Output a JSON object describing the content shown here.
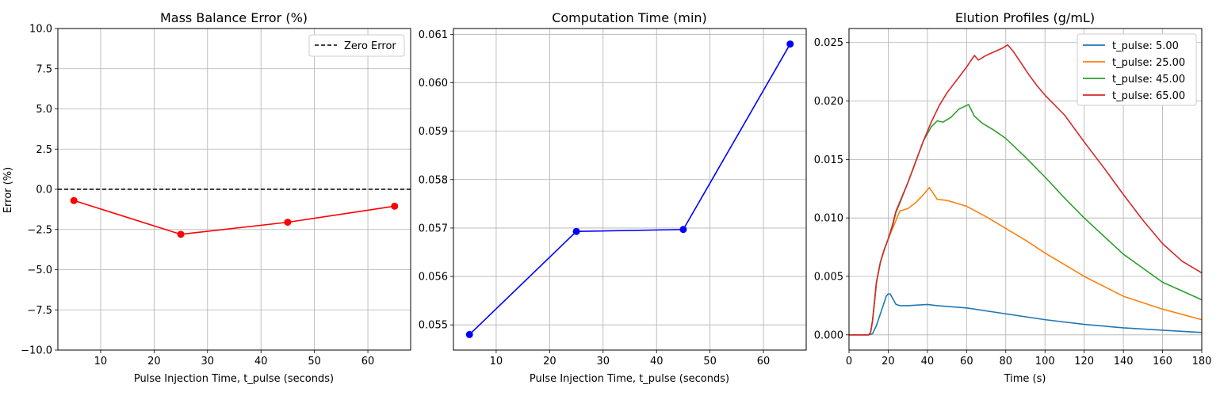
{
  "chart_data": [
    {
      "type": "line",
      "title": "Mass Balance Error (%)",
      "xlabel": "Pulse Injection Time, t_pulse (seconds)",
      "ylabel": "Error (%)",
      "xlim": [
        2,
        68
      ],
      "ylim": [
        -10,
        10
      ],
      "xticks": [
        10,
        20,
        30,
        40,
        50,
        60
      ],
      "yticks": [
        -10.0,
        -7.5,
        -5.0,
        -2.5,
        0.0,
        2.5,
        5.0,
        7.5,
        10.0
      ],
      "ytick_labels": [
        "−10.0",
        "−7.5",
        "−5.0",
        "−2.5",
        "0.0",
        "2.5",
        "5.0",
        "7.5",
        "10.0"
      ],
      "grid": true,
      "legend": "upper right",
      "series": [
        {
          "x": [
            5,
            25,
            45,
            65
          ],
          "y": [
            -0.7,
            -2.8,
            -2.05,
            -1.05
          ],
          "color": "#ff0000",
          "marker": "circle"
        }
      ],
      "hlines": [
        {
          "name": "Zero Error",
          "y": 0,
          "color": "#000000",
          "style": "dashed"
        }
      ]
    },
    {
      "type": "line",
      "title": "Computation Time (min)",
      "xlabel": "Pulse Injection Time, t_pulse (seconds)",
      "ylabel": "",
      "xlim": [
        2,
        68
      ],
      "ylim": [
        0.05448,
        0.06112
      ],
      "xticks": [
        10,
        20,
        30,
        40,
        50,
        60
      ],
      "yticks": [
        0.055,
        0.056,
        0.057,
        0.058,
        0.059,
        0.06,
        0.061
      ],
      "ytick_labels": [
        "0.055",
        "0.056",
        "0.057",
        "0.058",
        "0.059",
        "0.060",
        "0.061"
      ],
      "grid": true,
      "series": [
        {
          "x": [
            5,
            25,
            45,
            65
          ],
          "y": [
            0.0548,
            0.05693,
            0.05697,
            0.0608
          ],
          "color": "#0000ff",
          "marker": "circle"
        }
      ]
    },
    {
      "type": "line",
      "title": "Elution Profiles (g/mL)",
      "xlabel": "Time (s)",
      "ylabel": "",
      "xlim": [
        0,
        180
      ],
      "ylim": [
        -0.0013,
        0.0262
      ],
      "xticks": [
        0,
        20,
        40,
        60,
        80,
        100,
        120,
        140,
        160,
        180
      ],
      "yticks": [
        0.0,
        0.005,
        0.01,
        0.015,
        0.02,
        0.025
      ],
      "ytick_labels": [
        "0.000",
        "0.005",
        "0.010",
        "0.015",
        "0.020",
        "0.025"
      ],
      "grid": true,
      "legend": "upper right",
      "series": [
        {
          "name": "t_pulse: 5.00",
          "color": "#1f77b4",
          "x": [
            0,
            10,
            12,
            14,
            16,
            18,
            19,
            20,
            21,
            22,
            24,
            26,
            30,
            40,
            45,
            60,
            80,
            100,
            120,
            140,
            160,
            180
          ],
          "y": [
            0,
            0,
            0.0001,
            0.0008,
            0.0018,
            0.0028,
            0.0033,
            0.0035,
            0.0035,
            0.0032,
            0.0026,
            0.0025,
            0.0025,
            0.0026,
            0.0025,
            0.0023,
            0.0018,
            0.0013,
            0.0009,
            0.0006,
            0.0004,
            0.0002
          ]
        },
        {
          "name": "t_pulse: 25.00",
          "color": "#ff7f0e",
          "x": [
            0,
            10,
            11,
            12,
            13,
            14,
            16,
            18,
            20,
            22,
            24,
            26,
            28,
            30,
            34,
            38,
            41,
            43,
            45,
            50,
            60,
            70,
            80,
            90,
            100,
            110,
            120,
            140,
            160,
            180
          ],
          "y": [
            0,
            0,
            0.0002,
            0.0012,
            0.0028,
            0.0045,
            0.0062,
            0.0073,
            0.0082,
            0.009,
            0.0098,
            0.0106,
            0.0107,
            0.0108,
            0.0113,
            0.012,
            0.0126,
            0.0121,
            0.0116,
            0.0115,
            0.011,
            0.0101,
            0.0091,
            0.0081,
            0.007,
            0.006,
            0.005,
            0.0033,
            0.0022,
            0.0013
          ]
        },
        {
          "name": "t_pulse: 45.00",
          "color": "#2ca02c",
          "x": [
            0,
            10,
            11,
            12,
            13,
            14,
            16,
            18,
            20,
            22,
            24,
            26,
            30,
            34,
            38,
            42,
            45,
            48,
            52,
            56,
            61,
            64,
            68,
            74,
            80,
            90,
            100,
            110,
            120,
            140,
            160,
            180
          ],
          "y": [
            0,
            0,
            0.0002,
            0.0012,
            0.0028,
            0.0045,
            0.0062,
            0.0073,
            0.0082,
            0.0092,
            0.0105,
            0.0113,
            0.013,
            0.0148,
            0.0166,
            0.0178,
            0.0183,
            0.0182,
            0.0186,
            0.0193,
            0.0197,
            0.0187,
            0.0181,
            0.0175,
            0.0168,
            0.0152,
            0.0135,
            0.0117,
            0.01,
            0.0069,
            0.0045,
            0.003
          ]
        },
        {
          "name": "t_pulse: 65.00",
          "color": "#d62728",
          "x": [
            0,
            10,
            11,
            12,
            13,
            14,
            16,
            18,
            20,
            22,
            24,
            26,
            30,
            34,
            38,
            42,
            46,
            50,
            55,
            60,
            64,
            66,
            70,
            74,
            78,
            81,
            84,
            88,
            92,
            96,
            100,
            110,
            120,
            130,
            140,
            150,
            160,
            170,
            180
          ],
          "y": [
            0,
            0,
            0.0002,
            0.0012,
            0.0028,
            0.0045,
            0.0062,
            0.0073,
            0.0082,
            0.0093,
            0.0106,
            0.0114,
            0.013,
            0.0148,
            0.0166,
            0.0182,
            0.0196,
            0.0207,
            0.0218,
            0.0229,
            0.0239,
            0.0235,
            0.0239,
            0.0242,
            0.0245,
            0.0248,
            0.0242,
            0.0232,
            0.0222,
            0.0213,
            0.0205,
            0.0188,
            0.0165,
            0.0143,
            0.012,
            0.0098,
            0.0078,
            0.0063,
            0.0053
          ]
        }
      ]
    }
  ]
}
